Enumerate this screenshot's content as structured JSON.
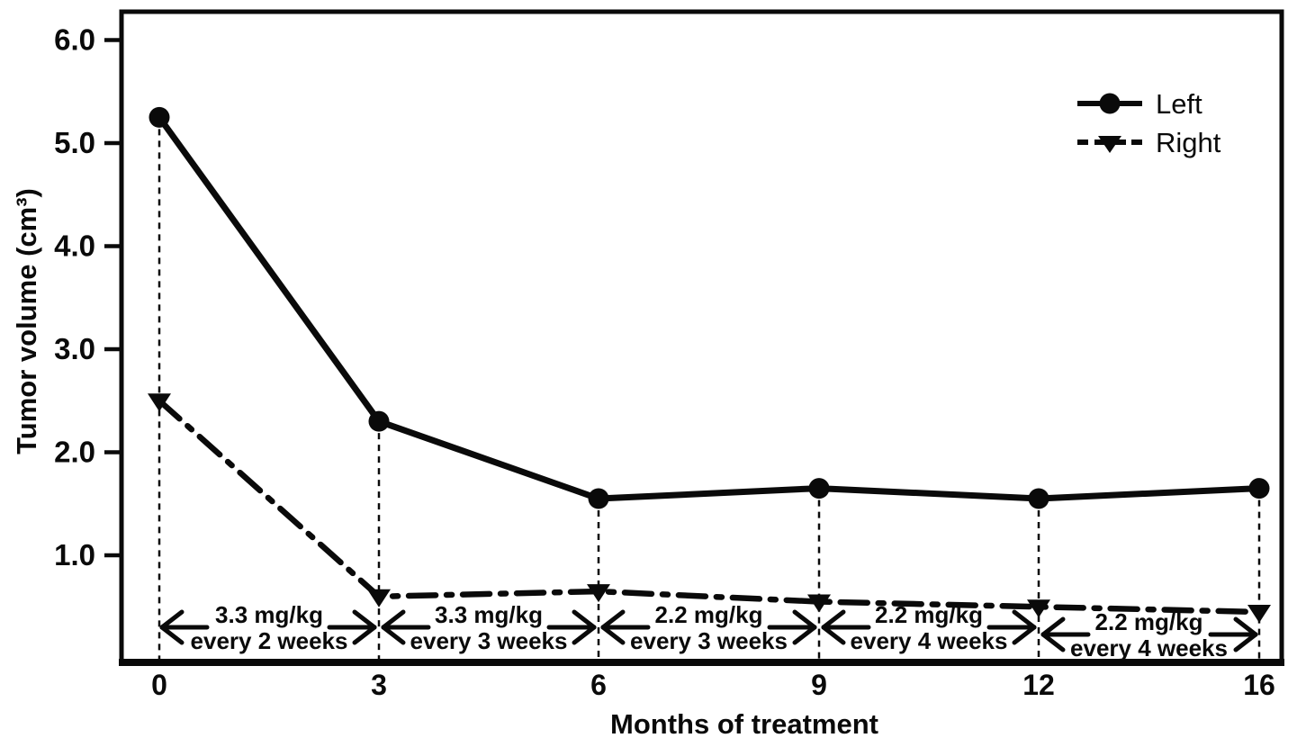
{
  "chart_data": {
    "type": "line",
    "title": "",
    "xlabel": "Months of treatment",
    "ylabel": "Tumor volume (cm³)",
    "x": [
      0,
      3,
      6,
      9,
      12,
      16
    ],
    "x_tick_labels": [
      "0",
      "3",
      "6",
      "9",
      "12",
      "16"
    ],
    "y_tick_labels": [
      "1.0",
      "2.0",
      "3.0",
      "4.0",
      "5.0",
      "6.0"
    ],
    "ylim": [
      0,
      6.3
    ],
    "grid": false,
    "series": [
      {
        "name": "Left",
        "marker": "filled-circle",
        "line_style": "solid",
        "values": [
          5.25,
          2.3,
          1.55,
          1.65,
          1.55,
          1.65
        ]
      },
      {
        "name": "Right",
        "marker": "filled-triangle-down",
        "line_style": "dash-dot",
        "values": [
          2.5,
          0.6,
          0.65,
          0.55,
          0.5,
          0.45
        ]
      }
    ],
    "legend": {
      "position": "top-right",
      "entries": [
        "Left",
        "Right"
      ]
    },
    "annotations": [
      {
        "from_month": 0,
        "to_month": 3,
        "line1": "3.3 mg/kg",
        "line2": "every 2 weeks"
      },
      {
        "from_month": 3,
        "to_month": 6,
        "line1": "3.3 mg/kg",
        "line2": "every 3 weeks"
      },
      {
        "from_month": 6,
        "to_month": 9,
        "line1": "2.2 mg/kg",
        "line2": "every 3 weeks"
      },
      {
        "from_month": 9,
        "to_month": 12,
        "line1": "2.2 mg/kg",
        "line2": "every 4 weeks"
      },
      {
        "from_month": 12,
        "to_month": 16,
        "line1": "2.2 mg/kg",
        "line2": "every 4 weeks"
      }
    ],
    "colors": {
      "foreground": "#0a0a0a",
      "background": "#ffffff"
    }
  }
}
